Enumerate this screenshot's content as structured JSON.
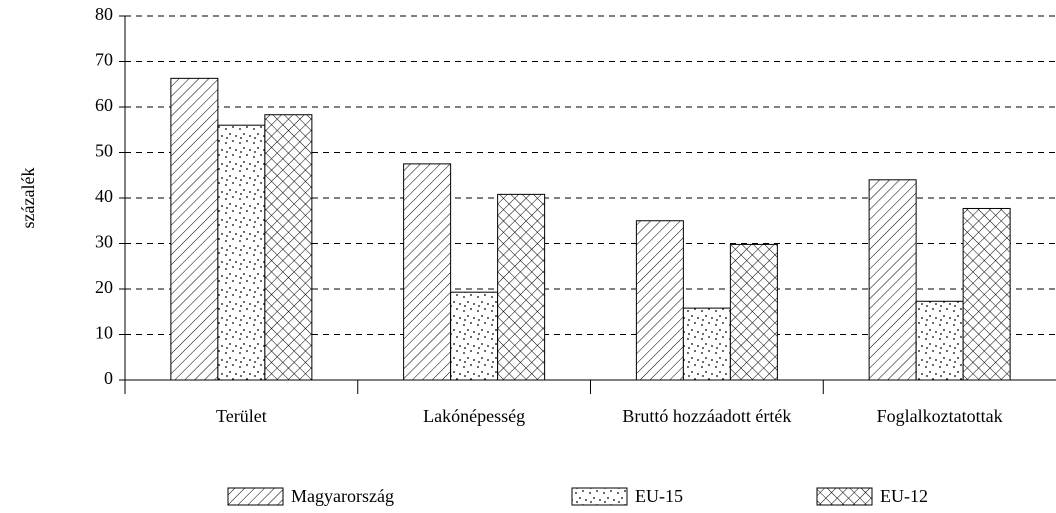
{
  "chart_data": {
    "type": "bar",
    "y_label": "százalék",
    "categories": [
      "Terület",
      "Lakónépesség",
      "Bruttó hozzáadott érték",
      "Foglalkoztatottak"
    ],
    "series": [
      {
        "name": "Magyarország",
        "pattern": "diagonal",
        "values": [
          66.3,
          47.5,
          35,
          44
        ]
      },
      {
        "name": "EU-15",
        "pattern": "dots",
        "values": [
          56,
          19.3,
          15.8,
          17.3
        ]
      },
      {
        "name": "EU-12",
        "pattern": "crosshatch",
        "values": [
          58.3,
          40.8,
          29.8,
          37.7
        ]
      }
    ],
    "ylim": [
      0,
      80
    ],
    "yticks": [
      0,
      10,
      20,
      30,
      40,
      50,
      60,
      70,
      80
    ],
    "grid": true,
    "legend": "bottom"
  }
}
